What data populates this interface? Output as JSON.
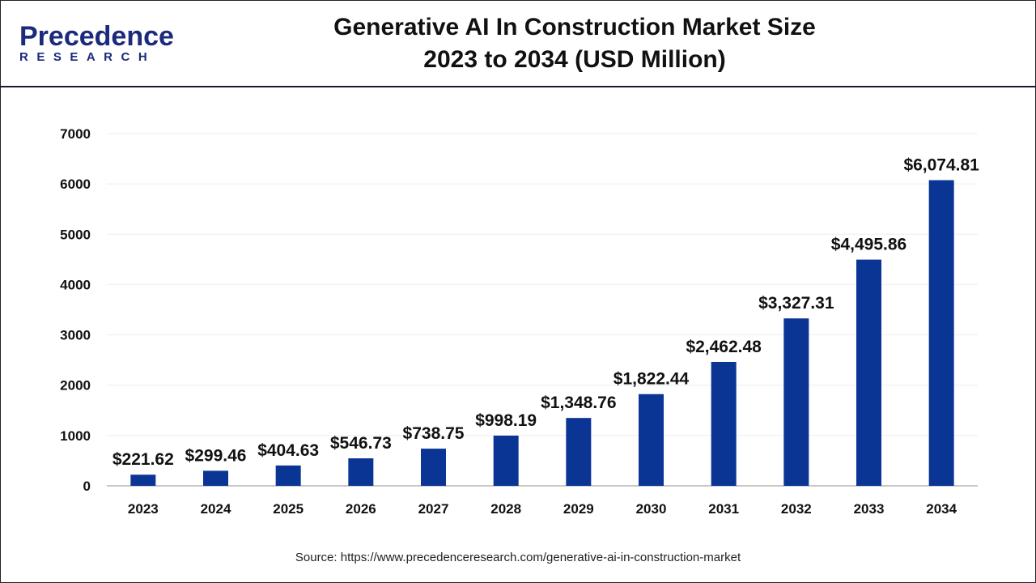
{
  "logo": {
    "line1": "Precedence",
    "line2": "RESEARCH"
  },
  "chart_data": {
    "type": "bar",
    "title": "Generative AI In Construction Market Size",
    "subtitle": "2023 to 2034 (USD Million)",
    "categories": [
      "2023",
      "2024",
      "2025",
      "2026",
      "2027",
      "2028",
      "2029",
      "2030",
      "2031",
      "2032",
      "2033",
      "2034"
    ],
    "values": [
      221.62,
      299.46,
      404.63,
      546.73,
      738.75,
      998.19,
      1348.76,
      1822.44,
      2462.48,
      3327.31,
      4495.86,
      6074.81
    ],
    "data_labels": [
      "$221.62",
      "$299.46",
      "$404.63",
      "$546.73",
      "$738.75",
      "$998.19",
      "$1,348.76",
      "$1,822.44",
      "$2,462.48",
      "$3,327.31",
      "$4,495.86",
      "$6,074.81"
    ],
    "ylim": [
      0,
      7000
    ],
    "yticks": [
      "0",
      "1000",
      "2000",
      "3000",
      "4000",
      "5000",
      "6000",
      "7000"
    ],
    "grid": true,
    "bar_color": "#0a3594",
    "xlabel": "",
    "ylabel": ""
  },
  "source": "Source: https://www.precedenceresearch.com/generative-ai-in-construction-market"
}
